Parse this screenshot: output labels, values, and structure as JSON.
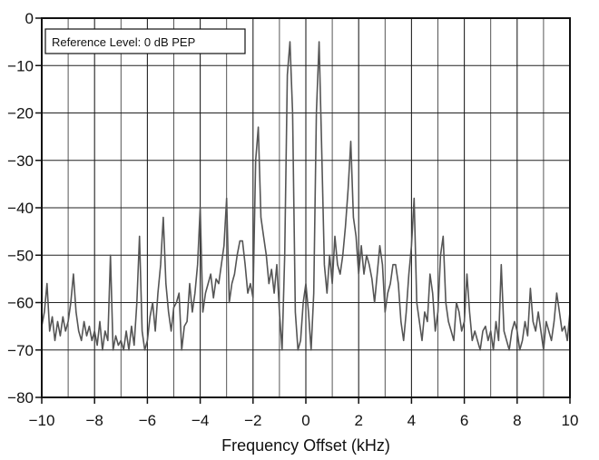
{
  "chart_data": {
    "type": "line",
    "title": "",
    "xlabel": "Frequency Offset (kHz)",
    "ylabel": "",
    "xlim": [
      -10,
      10
    ],
    "ylim": [
      -80,
      0
    ],
    "xticks": [
      -10,
      -8,
      -6,
      -4,
      -2,
      0,
      2,
      4,
      6,
      8,
      10
    ],
    "yticks": [
      0,
      -10,
      -20,
      -30,
      -40,
      -50,
      -60,
      -70,
      -80
    ],
    "xtick_labels": [
      "−10",
      "−8",
      "−6",
      "−4",
      "−2",
      "0",
      "2",
      "4",
      "6",
      "8",
      "10"
    ],
    "ytick_labels": [
      "0",
      "−10",
      "−20",
      "−30",
      "−40",
      "−50",
      "−60",
      "−70",
      "−80"
    ],
    "grid": true,
    "annotation": "Reference Level: 0 dB PEP",
    "line_color": "#555555",
    "series": [
      {
        "x": [
          -10.0,
          -9.9,
          -9.8,
          -9.7,
          -9.6,
          -9.5,
          -9.4,
          -9.3,
          -9.2,
          -9.1,
          -9.0,
          -8.9,
          -8.8,
          -8.7,
          -8.6,
          -8.5,
          -8.4,
          -8.3,
          -8.2,
          -8.1,
          -8.0,
          -7.9,
          -7.8,
          -7.7,
          -7.6,
          -7.5,
          -7.4,
          -7.3,
          -7.2,
          -7.1,
          -7.0,
          -6.9,
          -6.8,
          -6.7,
          -6.6,
          -6.5,
          -6.4,
          -6.3,
          -6.2,
          -6.1,
          -6.0,
          -5.9,
          -5.8,
          -5.7,
          -5.6,
          -5.5,
          -5.4,
          -5.3,
          -5.2,
          -5.1,
          -5.0,
          -4.9,
          -4.8,
          -4.7,
          -4.6,
          -4.5,
          -4.4,
          -4.3,
          -4.2,
          -4.1,
          -4.0,
          -3.9,
          -3.8,
          -3.7,
          -3.6,
          -3.5,
          -3.4,
          -3.3,
          -3.2,
          -3.1,
          -3.0,
          -2.9,
          -2.8,
          -2.7,
          -2.6,
          -2.5,
          -2.4,
          -2.3,
          -2.2,
          -2.1,
          -2.0,
          -1.9,
          -1.8,
          -1.7,
          -1.6,
          -1.5,
          -1.4,
          -1.3,
          -1.2,
          -1.1,
          -1.0,
          -0.9,
          -0.8,
          -0.7,
          -0.6,
          -0.5,
          -0.4,
          -0.3,
          -0.2,
          -0.1,
          0.0,
          0.1,
          0.2,
          0.3,
          0.4,
          0.5,
          0.6,
          0.7,
          0.8,
          0.9,
          1.0,
          1.1,
          1.2,
          1.3,
          1.4,
          1.5,
          1.6,
          1.7,
          1.8,
          1.9,
          2.0,
          2.1,
          2.2,
          2.3,
          2.4,
          2.5,
          2.6,
          2.7,
          2.8,
          2.9,
          3.0,
          3.1,
          3.2,
          3.3,
          3.4,
          3.5,
          3.6,
          3.7,
          3.8,
          3.9,
          4.0,
          4.1,
          4.2,
          4.3,
          4.4,
          4.5,
          4.6,
          4.7,
          4.8,
          4.9,
          5.0,
          5.1,
          5.2,
          5.3,
          5.4,
          5.5,
          5.6,
          5.7,
          5.8,
          5.9,
          6.0,
          6.1,
          6.2,
          6.3,
          6.4,
          6.5,
          6.6,
          6.7,
          6.8,
          6.9,
          7.0,
          7.1,
          7.2,
          7.3,
          7.4,
          7.5,
          7.6,
          7.7,
          7.8,
          7.9,
          8.0,
          8.1,
          8.2,
          8.3,
          8.4,
          8.5,
          8.6,
          8.7,
          8.8,
          8.9,
          9.0,
          9.1,
          9.2,
          9.3,
          9.4,
          9.5,
          9.6,
          9.7,
          9.8,
          9.9,
          10.0
        ],
        "y": [
          -65,
          -62,
          -56,
          -66,
          -63,
          -68,
          -64,
          -67,
          -63,
          -66,
          -64,
          -60,
          -54,
          -62,
          -66,
          -68,
          -64,
          -67,
          -65,
          -68,
          -66,
          -69,
          -64,
          -70,
          -66,
          -68,
          -50,
          -70,
          -67,
          -69,
          -68,
          -70,
          -66,
          -70,
          -65,
          -69,
          -60,
          -46,
          -66,
          -70,
          -68,
          -63,
          -60,
          -66,
          -58,
          -52,
          -42,
          -56,
          -62,
          -66,
          -61,
          -60,
          -58,
          -70,
          -65,
          -64,
          -56,
          -62,
          -58,
          -52,
          -40,
          -62,
          -58,
          -56,
          -54,
          -59,
          -55,
          -56,
          -52,
          -48,
          -38,
          -60,
          -56,
          -54,
          -50,
          -47,
          -47,
          -52,
          -58,
          -56,
          -59,
          -30,
          -23,
          -42,
          -46,
          -50,
          -56,
          -53,
          -58,
          -52,
          -62,
          -70,
          -50,
          -12,
          -5,
          -20,
          -62,
          -70,
          -68,
          -60,
          -56,
          -62,
          -70,
          -58,
          -20,
          -5,
          -28,
          -52,
          -58,
          -50,
          -56,
          -46,
          -52,
          -54,
          -50,
          -44,
          -36,
          -26,
          -42,
          -46,
          -54,
          -48,
          -54,
          -50,
          -52,
          -55,
          -60,
          -54,
          -48,
          -52,
          -62,
          -58,
          -56,
          -52,
          -52,
          -56,
          -64,
          -68,
          -62,
          -54,
          -48,
          -38,
          -60,
          -64,
          -68,
          -62,
          -64,
          -54,
          -58,
          -66,
          -62,
          -50,
          -46,
          -60,
          -64,
          -66,
          -68,
          -60,
          -62,
          -66,
          -64,
          -54,
          -62,
          -68,
          -66,
          -68,
          -70,
          -66,
          -65,
          -68,
          -66,
          -70,
          -64,
          -68,
          -52,
          -66,
          -68,
          -70,
          -66,
          -64,
          -66,
          -70,
          -68,
          -64,
          -67,
          -57,
          -64,
          -66,
          -62,
          -66,
          -70,
          -64,
          -66,
          -68,
          -64,
          -58,
          -62,
          -66,
          -65,
          -68,
          -62
        ]
      }
    ]
  }
}
